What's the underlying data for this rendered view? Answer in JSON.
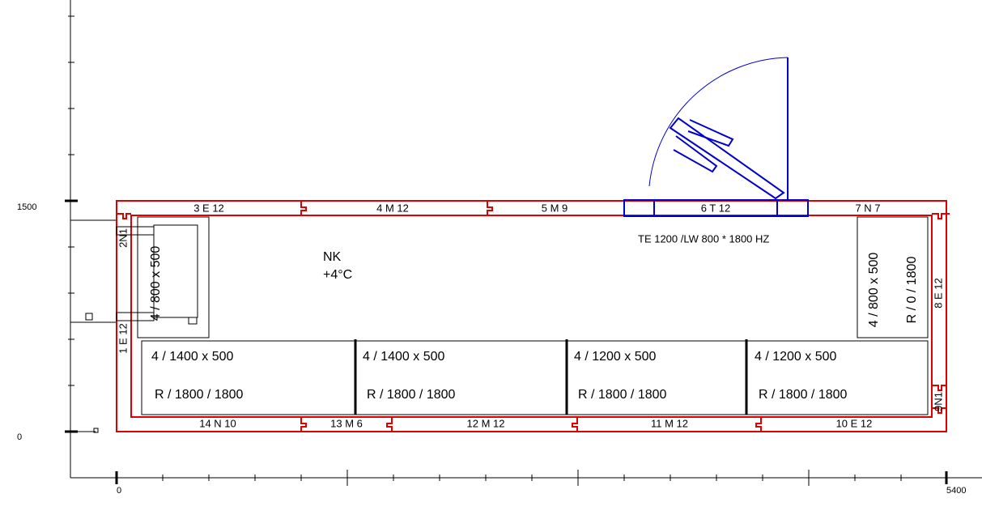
{
  "axis": {
    "y_labels": [
      "1500",
      "0"
    ],
    "x_labels": [
      "0",
      "5400"
    ]
  },
  "room": {
    "name": "NK",
    "temperature": "+4°C"
  },
  "door": {
    "label": "TE 1200 /LW 800 * 1800 HZ"
  },
  "panels": {
    "top": [
      "3 E 12",
      "4 M 12",
      "5 M 9",
      "6 T 12",
      "7 N 7"
    ],
    "right": [
      "8 E 12",
      "9N1"
    ],
    "bottom": [
      "14 N 10",
      "13 M 6",
      "12 M 12",
      "11 M 12",
      "10 E 12"
    ],
    "left": [
      "1 E 12",
      "2N1"
    ]
  },
  "shelves": [
    {
      "size": "4 / 800 x 500"
    },
    {
      "size": "4 / 800 x 500",
      "spec": "R / 0 / 1800"
    },
    {
      "size": "4 / 1400 x 500",
      "spec": "R / 1800 / 1800"
    },
    {
      "size": "4 / 1400 x 500",
      "spec": "R / 1800 / 1800"
    },
    {
      "size": "4 / 1200 x 500",
      "spec": "R / 1800 / 1800"
    },
    {
      "size": "4 / 1200 x 500",
      "spec": "R / 1800 / 1800"
    }
  ]
}
